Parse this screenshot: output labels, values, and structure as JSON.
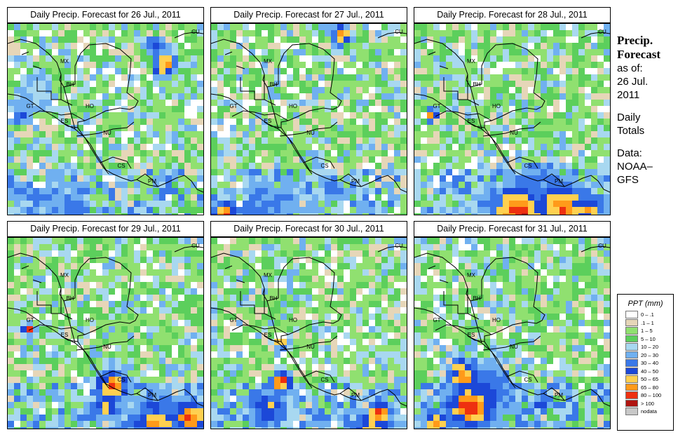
{
  "panels": [
    {
      "title": "Daily Precip. Forecast for  26 Jul., 2011",
      "date_key": "26"
    },
    {
      "title": "Daily Precip. Forecast for  27 Jul., 2011",
      "date_key": "27"
    },
    {
      "title": "Daily Precip. Forecast for  28 Jul., 2011",
      "date_key": "28"
    },
    {
      "title": "Daily Precip. Forecast for  29 Jul., 2011",
      "date_key": "29"
    },
    {
      "title": "Daily Precip. Forecast for  30 Jul., 2011",
      "date_key": "30"
    },
    {
      "title": "Daily Precip. Forecast for  31 Jul., 2011",
      "date_key": "31"
    }
  ],
  "country_labels": [
    "MX",
    "CU",
    "BH",
    "GT",
    "HO",
    "ES",
    "NU",
    "CS",
    "PM"
  ],
  "sidebar": {
    "title_line1": "Precip.",
    "title_line2": "Forecast",
    "asof_line1": "as of:",
    "asof_line2": "26 Jul.",
    "asof_line3": "2011",
    "daily_line1": "Daily",
    "daily_line2": "Totals",
    "data_line1": "Data:",
    "data_line2": "NOAA–",
    "data_line3": "GFS"
  },
  "legend": {
    "title": "PPT (mm)",
    "items": [
      {
        "label": "0 – .1",
        "color": "#ffffff"
      },
      {
        "label": ".1 – 1",
        "color": "#e6d6b8"
      },
      {
        "label": "1 – 5",
        "color": "#90e070"
      },
      {
        "label": "5 – 10",
        "color": "#5ccf5c"
      },
      {
        "label": "10 – 20",
        "color": "#a8d8f0"
      },
      {
        "label": "20 – 30",
        "color": "#70b0f0"
      },
      {
        "label": "30 – 40",
        "color": "#3a78e8"
      },
      {
        "label": "40 – 50",
        "color": "#1c48d8"
      },
      {
        "label": "50 – 65",
        "color": "#ffd050"
      },
      {
        "label": "65 – 80",
        "color": "#ff9a1a"
      },
      {
        "label": "80 – 100",
        "color": "#ee3010"
      },
      {
        "label": "> 100",
        "color": "#b01410"
      },
      {
        "label": "nodata",
        "color": "#c8c8c8"
      }
    ]
  }
}
